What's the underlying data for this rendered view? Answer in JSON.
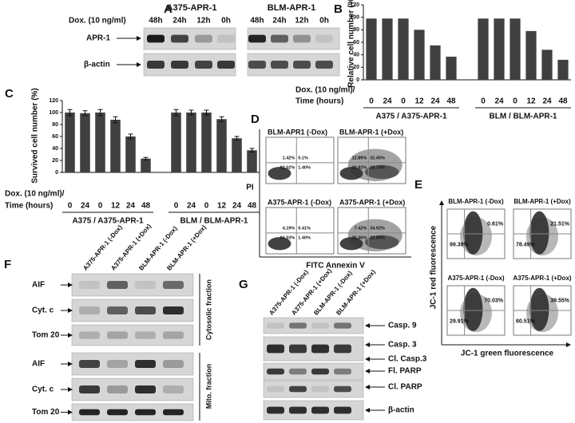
{
  "figure": {
    "panel_a": {
      "letter": "A",
      "dox_label": "Dox. (10 ng/ml)",
      "groups": [
        "A375-APR-1",
        "BLM-APR-1"
      ],
      "lanes": [
        "48h",
        "24h",
        "12h",
        "0h",
        "48h",
        "24h",
        "12h",
        "0h"
      ],
      "rows": [
        "APR-1",
        "β-actin"
      ]
    },
    "panel_d": {
      "letter": "D",
      "y_label": "PI",
      "x_label": "FITC Annexin V",
      "plots": [
        {
          "title": "BLM-APR1 (-Dox)",
          "quadrants": [
            "1.42%",
            "0.1%",
            "92.02%",
            "1.40%"
          ]
        },
        {
          "title": "BLM-APR-1 (+Dox)",
          "quadrants": [
            "12.89%",
            "32.45%",
            "30.92%",
            "23.74%"
          ]
        },
        {
          "title": "A375-APR-1 (-Dox)",
          "quadrants": [
            "4.19%",
            "0.41%",
            "94.03%",
            "1.40%"
          ]
        },
        {
          "title": "A375-APR-1 (+Dox)",
          "quadrants": [
            "7.42%",
            "34.92%",
            "35.06%",
            "22.60%"
          ]
        }
      ]
    },
    "panel_e": {
      "letter": "E",
      "y_label": "JC-1 red fluorescence",
      "x_label": "JC-1  green fluorescence",
      "plots": [
        {
          "title": "BLM-APR-1 (-Dox)",
          "percents": [
            "0.61%",
            "99.39%"
          ]
        },
        {
          "title": "BLM-APR-1 (+Dox)",
          "percents": [
            "21.51%",
            "78.49%"
          ]
        },
        {
          "title": "A375-APR-1 (-Dox)",
          "percents": [
            "70.03%",
            "29.91%"
          ]
        },
        {
          "title": "A375-APR-1 (+Dox)",
          "percents": [
            "39.55%",
            "60.51%"
          ]
        }
      ]
    },
    "panel_f": {
      "letter": "F",
      "lanes": [
        "A375-APR-1 (-Dox)",
        "A375-APR-1 (+Dox)",
        "BLM-APR-1 (-Dox)",
        "BLM-APR-1 (+Dox)"
      ],
      "rows": [
        "AIF",
        "Cyt. c",
        "Tom 20",
        "AIF",
        "Cyt. c",
        "Tom 20"
      ],
      "fractions": [
        "Cytosolic fraction",
        "Mito. fraction"
      ]
    },
    "panel_g": {
      "letter": "G",
      "lanes": [
        "A375-APR-1 (-Dox)",
        "A375-APR-1 (+Dox)",
        "BLM-APR-1 (-Dox)",
        "BLM-APR-1 (+Dox)"
      ],
      "labels": [
        "Casp. 9",
        "Casp. 3",
        "Cl. Casp.3",
        "Fl. PARP",
        "Cl. PARP",
        "β-actin"
      ]
    }
  },
  "chart_data": [
    {
      "type": "bar",
      "letter": "B",
      "y_label": "Relative cell number (%)",
      "x_label": [
        "Dox. (10 ng/ml)/",
        "Time (hours)"
      ],
      "categories": [
        "0",
        "24",
        "0",
        "12",
        "24",
        "48",
        "0",
        "24",
        "0",
        "12",
        "24",
        "48"
      ],
      "values": [
        98,
        98,
        98,
        80,
        55,
        37,
        98,
        98,
        98,
        78,
        48,
        32
      ],
      "group_labels": [
        "A375 / A375-APR-1",
        "BLM / BLM-APR-1"
      ],
      "color": "#404040",
      "ylim": [
        0,
        120
      ],
      "yticks": [
        0,
        20,
        40,
        60,
        80,
        100,
        120
      ]
    },
    {
      "type": "bar",
      "letter": "C",
      "y_label": "Survived cell number (%)",
      "x_label": [
        "Dox. (10 ng/ml)/",
        "Time (hours)"
      ],
      "categories": [
        "0",
        "24",
        "0",
        "12",
        "24",
        "48",
        "0",
        "24",
        "0",
        "12",
        "24",
        "48"
      ],
      "values": [
        100,
        99,
        100,
        88,
        60,
        23,
        100,
        100,
        100,
        89,
        57,
        37
      ],
      "errors": [
        5,
        4,
        5,
        5,
        4,
        2,
        5,
        4,
        4,
        4,
        3,
        3
      ],
      "group_labels": [
        "A375 / A375-APR-1",
        "BLM / BLM-APR-1"
      ],
      "color": "#404040",
      "ylim": [
        0,
        120
      ],
      "yticks": [
        0,
        20,
        40,
        60,
        80,
        100,
        120
      ]
    }
  ]
}
